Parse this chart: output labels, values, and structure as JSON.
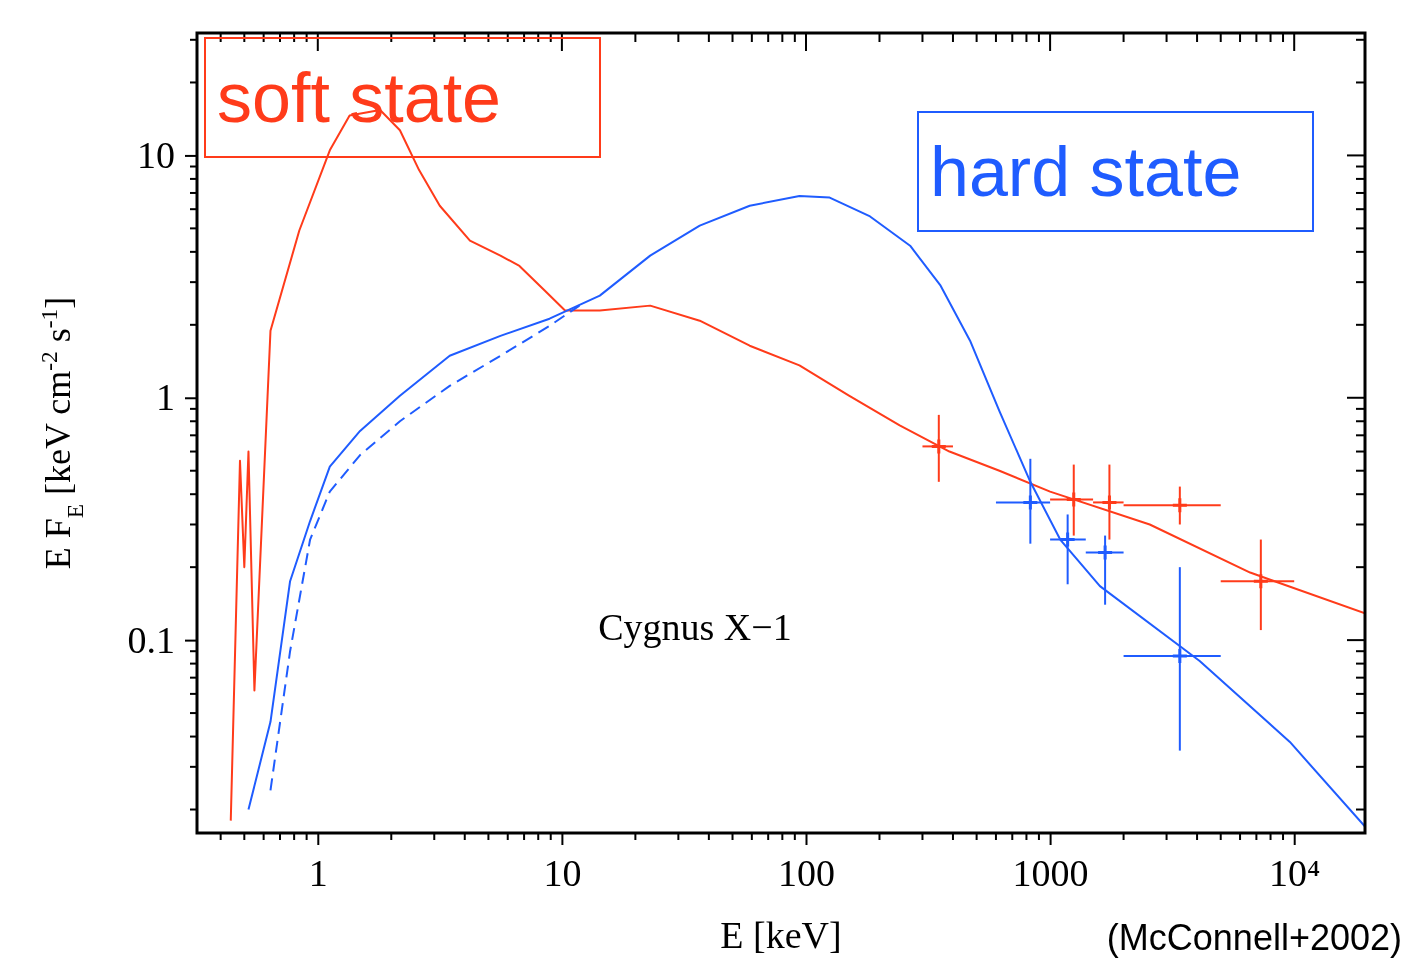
{
  "chart_data": {
    "type": "line",
    "xlabel": "E [keV]",
    "ylabel": "E F$_{E}$ [keV cm$^{-2}$ s$^{-1}$]",
    "log": "xy",
    "xlim": [
      0.32,
      19500
    ],
    "ylim": [
      0.016,
      32
    ],
    "xticks": [
      {
        "value": 0.4,
        "label": null
      },
      {
        "value": 0.5,
        "label": null
      },
      {
        "value": 0.6,
        "label": null
      },
      {
        "value": 0.7,
        "label": null
      },
      {
        "value": 0.8,
        "label": null
      },
      {
        "value": 0.9,
        "label": null
      },
      1,
      {
        "value": 2,
        "label": null
      },
      {
        "value": 3,
        "label": null
      },
      {
        "value": 4,
        "label": null
      },
      {
        "value": 5,
        "label": null
      },
      {
        "value": 6,
        "label": null
      },
      {
        "value": 7,
        "label": null
      },
      {
        "value": 8,
        "label": null
      },
      {
        "value": 9,
        "label": null
      },
      10,
      {
        "value": 20,
        "label": null
      },
      {
        "value": 30,
        "label": null
      },
      {
        "value": 40,
        "label": null
      },
      {
        "value": 50,
        "label": null
      },
      {
        "value": 60,
        "label": null
      },
      {
        "value": 70,
        "label": null
      },
      {
        "value": 80,
        "label": null
      },
      {
        "value": 90,
        "label": null
      },
      100,
      {
        "value": 200,
        "label": null
      },
      {
        "value": 300,
        "label": null
      },
      {
        "value": 400,
        "label": null
      },
      {
        "value": 500,
        "label": null
      },
      {
        "value": 600,
        "label": null
      },
      {
        "value": 700,
        "label": null
      },
      {
        "value": 800,
        "label": null
      },
      {
        "value": 900,
        "label": null
      },
      1000,
      {
        "value": 2000,
        "label": null
      },
      {
        "value": 3000,
        "label": null
      },
      {
        "value": 4000,
        "label": null
      },
      {
        "value": 5000,
        "label": null
      },
      {
        "value": 6000,
        "label": null
      },
      {
        "value": 7000,
        "label": null
      },
      {
        "value": 8000,
        "label": null
      },
      {
        "value": 9000,
        "label": null
      },
      {
        "value": 10000,
        "label": "10⁴"
      }
    ],
    "yticks": [
      {
        "value": 0.02,
        "label": null
      },
      {
        "value": 0.03,
        "label": null
      },
      {
        "value": 0.04,
        "label": null
      },
      {
        "value": 0.05,
        "label": null
      },
      {
        "value": 0.06,
        "label": null
      },
      {
        "value": 0.07,
        "label": null
      },
      {
        "value": 0.08,
        "label": null
      },
      {
        "value": 0.09,
        "label": null
      },
      0.1,
      {
        "value": 0.2,
        "label": null
      },
      {
        "value": 0.3,
        "label": null
      },
      {
        "value": 0.4,
        "label": null
      },
      {
        "value": 0.5,
        "label": null
      },
      {
        "value": 0.6,
        "label": null
      },
      {
        "value": 0.7,
        "label": null
      },
      {
        "value": 0.8,
        "label": null
      },
      {
        "value": 0.9,
        "label": null
      },
      1,
      {
        "value": 2,
        "label": null
      },
      {
        "value": 3,
        "label": null
      },
      {
        "value": 4,
        "label": null
      },
      {
        "value": 5,
        "label": null
      },
      {
        "value": 6,
        "label": null
      },
      {
        "value": 7,
        "label": null
      },
      {
        "value": 8,
        "label": null
      },
      {
        "value": 9,
        "label": null
      },
      10,
      {
        "value": 20,
        "label": null
      },
      {
        "value": 30,
        "label": null
      }
    ],
    "annotations": [
      "Cygnus X−1",
      "(McConnell+2002)"
    ],
    "series": [
      {
        "name": "soft state",
        "color": "#ff3b1a",
        "line_style": "solid",
        "x": [
          0.44,
          0.48,
          0.5,
          0.52,
          0.55,
          0.64,
          0.84,
          1.12,
          1.35,
          1.8,
          2.17,
          2.6,
          3.16,
          4.2,
          5.6,
          6.7,
          8.5,
          10.3,
          14.3,
          23,
          36.7,
          58.8,
          94,
          150,
          242,
          387,
          620,
          1000,
          2560,
          6600,
          19500
        ],
        "values": [
          0.018,
          0.55,
          0.2,
          0.6,
          0.062,
          1.89,
          4.9,
          10.5,
          14.6,
          15.4,
          12.7,
          8.7,
          6.2,
          4.45,
          3.86,
          3.5,
          2.77,
          2.29,
          2.29,
          2.4,
          2.08,
          1.64,
          1.36,
          1.02,
          0.77,
          0.6,
          0.5,
          0.41,
          0.3,
          0.19,
          0.129
        ]
      },
      {
        "name": "hard state",
        "color": "#1f5cff",
        "line_style": "solid",
        "x": [
          0.52,
          0.64,
          0.77,
          0.93,
          1.12,
          1.49,
          2.17,
          3.47,
          5.6,
          8.9,
          14.3,
          23,
          36.7,
          58.8,
          94,
          125,
          183,
          267,
          356,
          470,
          620,
          830,
          1100,
          1600,
          4100,
          9600,
          19500
        ],
        "values": [
          0.02,
          0.046,
          0.175,
          0.31,
          0.52,
          0.73,
          1.02,
          1.49,
          1.8,
          2.12,
          2.64,
          3.86,
          5.13,
          6.2,
          6.8,
          6.7,
          5.6,
          4.24,
          2.9,
          1.72,
          0.88,
          0.45,
          0.26,
          0.167,
          0.082,
          0.038,
          0.017
        ]
      },
      {
        "color": "#1f5cff",
        "line_style": "dashed",
        "x": [
          0.64,
          0.77,
          0.93,
          1.12,
          1.49,
          2.17,
          3.47,
          5.6,
          8.9,
          11.8
        ],
        "values": [
          0.024,
          0.09,
          0.26,
          0.41,
          0.58,
          0.8,
          1.12,
          1.49,
          1.98,
          2.4
        ]
      },
      {
        "type": "scatter",
        "marker": "cross",
        "color": "#ff3b1a",
        "x": [
          350,
          1250,
          1750,
          3400,
          7300
        ],
        "values": [
          0.63,
          0.38,
          0.37,
          0.36,
          0.175
        ],
        "errors": [
          [
            0.45,
            0.85
          ],
          [
            0.27,
            0.53
          ],
          [
            0.26,
            0.53
          ],
          [
            0.3,
            0.43
          ],
          [
            0.11,
            0.26
          ]
        ],
        "xerrors": [
          [
            300,
            400
          ],
          [
            1000,
            1500
          ],
          [
            1500,
            2000
          ],
          [
            2000,
            5000
          ],
          [
            5000,
            10000
          ]
        ]
      },
      {
        "type": "scatter",
        "marker": "cross",
        "color": "#1f5cff",
        "x": [
          830,
          1180,
          1680,
          3400
        ],
        "values": [
          0.37,
          0.26,
          0.23,
          0.086
        ],
        "errors": [
          [
            0.25,
            0.56
          ],
          [
            0.17,
            0.33
          ],
          [
            0.14,
            0.27
          ],
          [
            0.035,
            0.2
          ]
        ],
        "xerrors": [
          [
            600,
            1000
          ],
          [
            1000,
            1400
          ],
          [
            1400,
            2000
          ],
          [
            2000,
            5000
          ]
        ]
      }
    ]
  }
}
